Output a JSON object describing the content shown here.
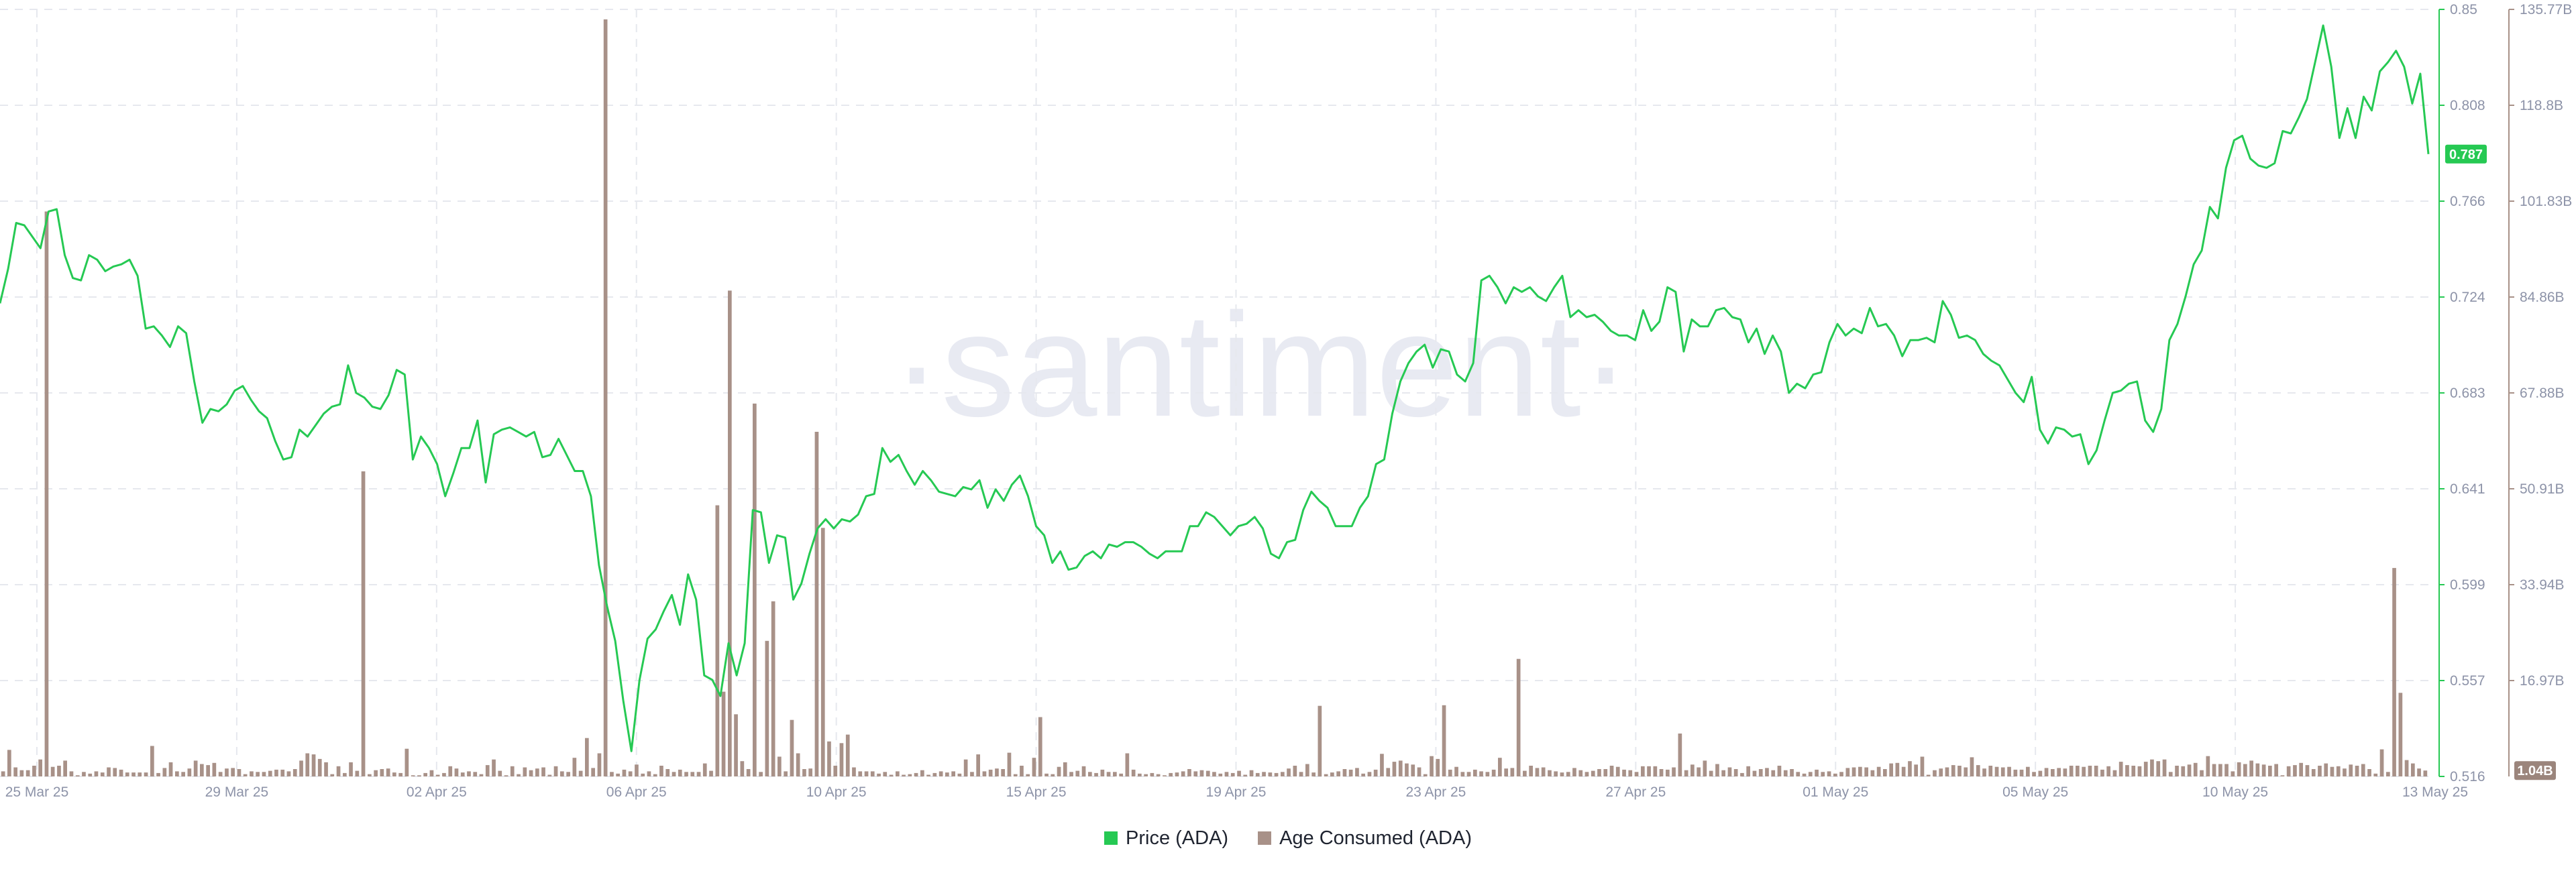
{
  "watermark": "·santiment·",
  "legend": {
    "price_label": "Price (ADA)",
    "age_label": "Age Consumed (ADA)"
  },
  "chart_data": {
    "type": "line",
    "title": "",
    "x_ticks": [
      "25 Mar 25",
      "29 Mar 25",
      "02 Apr 25",
      "06 Apr 25",
      "10 Apr 25",
      "15 Apr 25",
      "19 Apr 25",
      "23 Apr 25",
      "27 Apr 25",
      "01 May 25",
      "05 May 25",
      "10 May 25",
      "13 May 25"
    ],
    "price_axis": {
      "ticks": [
        "0.85",
        "0.808",
        "0.766",
        "0.724",
        "0.683",
        "0.641",
        "0.599",
        "0.557",
        "0.516"
      ],
      "min": 0.516,
      "max": 0.85,
      "color": "#26c953"
    },
    "age_axis": {
      "ticks": [
        "135.77B",
        "118.8B",
        "101.83B",
        "84.86B",
        "67.88B",
        "50.91B",
        "33.94B",
        "16.97B"
      ],
      "min": 0,
      "max": 135.77,
      "color": "#a89188"
    },
    "current_price_label": "0.787",
    "current_age_label": "1.04B",
    "series": [
      {
        "name": "Price (ADA)",
        "color": "#26c953",
        "values": [
          0.722,
          0.737,
          0.757,
          0.756,
          0.751,
          0.746,
          0.762,
          0.763,
          0.743,
          0.733,
          0.732,
          0.743,
          0.741,
          0.736,
          0.738,
          0.739,
          0.741,
          0.734,
          0.711,
          0.712,
          0.708,
          0.703,
          0.712,
          0.709,
          0.688,
          0.67,
          0.676,
          0.675,
          0.678,
          0.684,
          0.686,
          0.68,
          0.675,
          0.672,
          0.662,
          0.654,
          0.655,
          0.667,
          0.664,
          0.669,
          0.674,
          0.677,
          0.678,
          0.695,
          0.683,
          0.681,
          0.677,
          0.676,
          0.682,
          0.693,
          0.691,
          0.654,
          0.664,
          0.659,
          0.652,
          0.638,
          0.648,
          0.659,
          0.659,
          0.671,
          0.644,
          0.665,
          0.667,
          0.668,
          0.666,
          0.664,
          0.666,
          0.655,
          0.656,
          0.663,
          0.656,
          0.649,
          0.649,
          0.638,
          0.608,
          0.59,
          0.575,
          0.549,
          0.527,
          0.558,
          0.576,
          0.58,
          0.588,
          0.595,
          0.582,
          0.604,
          0.593,
          0.56,
          0.558,
          0.551,
          0.574,
          0.56,
          0.574,
          0.632,
          0.631,
          0.609,
          0.621,
          0.62,
          0.593,
          0.6,
          0.613,
          0.624,
          0.628,
          0.624,
          0.628,
          0.627,
          0.63,
          0.638,
          0.639,
          0.659,
          0.653,
          0.656,
          0.649,
          0.643,
          0.649,
          0.645,
          0.64,
          0.639,
          0.638,
          0.642,
          0.641,
          0.645,
          0.633,
          0.641,
          0.636,
          0.643,
          0.647,
          0.638,
          0.625,
          0.621,
          0.609,
          0.614,
          0.606,
          0.607,
          0.612,
          0.614,
          0.611,
          0.617,
          0.616,
          0.618,
          0.618,
          0.616,
          0.613,
          0.611,
          0.614,
          0.614,
          0.614,
          0.625,
          0.625,
          0.631,
          0.629,
          0.625,
          0.621,
          0.625,
          0.626,
          0.629,
          0.624,
          0.613,
          0.611,
          0.618,
          0.619,
          0.632,
          0.64,
          0.636,
          0.633,
          0.625,
          0.625,
          0.625,
          0.633,
          0.638,
          0.652,
          0.654,
          0.674,
          0.688,
          0.696,
          0.701,
          0.704,
          0.694,
          0.702,
          0.701,
          0.691,
          0.688,
          0.696,
          0.732,
          0.734,
          0.729,
          0.722,
          0.729,
          0.727,
          0.729,
          0.725,
          0.723,
          0.729,
          0.734,
          0.716,
          0.719,
          0.716,
          0.717,
          0.714,
          0.71,
          0.708,
          0.708,
          0.706,
          0.719,
          0.71,
          0.714,
          0.729,
          0.727,
          0.701,
          0.715,
          0.712,
          0.712,
          0.719,
          0.72,
          0.716,
          0.715,
          0.705,
          0.711,
          0.7,
          0.708,
          0.701,
          0.683,
          0.687,
          0.685,
          0.691,
          0.692,
          0.705,
          0.713,
          0.708,
          0.711,
          0.709,
          0.72,
          0.712,
          0.713,
          0.708,
          0.699,
          0.706,
          0.706,
          0.707,
          0.705,
          0.723,
          0.717,
          0.707,
          0.708,
          0.706,
          0.7,
          0.697,
          0.695,
          0.689,
          0.683,
          0.679,
          0.69,
          0.667,
          0.661,
          0.668,
          0.667,
          0.664,
          0.665,
          0.652,
          0.658,
          0.671,
          0.683,
          0.684,
          0.687,
          0.688,
          0.671,
          0.666,
          0.676,
          0.706,
          0.713,
          0.725,
          0.739,
          0.745,
          0.764,
          0.759,
          0.781,
          0.793,
          0.795,
          0.785,
          0.782,
          0.781,
          0.783,
          0.797,
          0.796,
          0.803,
          0.811,
          0.827,
          0.843,
          0.825,
          0.794,
          0.807,
          0.794,
          0.812,
          0.806,
          0.823,
          0.827,
          0.832,
          0.825,
          0.809,
          0.822,
          0.787
        ]
      },
      {
        "name": "Age Consumed (ADA)",
        "color": "#a89188",
        "values": [
          0.9,
          4.7,
          1.6,
          1.1,
          1.1,
          1.9,
          3.0,
          100.0,
          1.7,
          1.9,
          2.8,
          0.9,
          0.2,
          0.8,
          0.5,
          0.9,
          0.7,
          1.6,
          1.5,
          1.2,
          0.7,
          0.7,
          0.7,
          0.7,
          5.4,
          0.6,
          1.5,
          2.5,
          0.9,
          0.8,
          1.4,
          2.8,
          2.2,
          2.0,
          2.4,
          0.8,
          1.4,
          1.5,
          1.3,
          0.4,
          0.9,
          0.8,
          0.8,
          1.0,
          1.2,
          1.2,
          0.9,
          1.3,
          2.8,
          4.1,
          3.9,
          3.1,
          2.5,
          0.4,
          1.8,
          0.6,
          2.5,
          1.0,
          54.0,
          0.4,
          1.1,
          1.3,
          1.4,
          0.7,
          0.6,
          4.9,
          0.2,
          0.2,
          0.6,
          1.1,
          0.3,
          0.6,
          1.8,
          1.4,
          0.7,
          0.9,
          0.8,
          0.4,
          2.0,
          3.0,
          1.0,
          0.2,
          1.8,
          0.4,
          1.6,
          1.1,
          1.4,
          1.6,
          0.3,
          1.8,
          0.9,
          0.8,
          3.3,
          1.0,
          6.8,
          1.5,
          4.1,
          134.0,
          0.8,
          0.5,
          1.2,
          0.9,
          2.1,
          0.5,
          0.9,
          0.4,
          1.9,
          1.3,
          0.8,
          1.2,
          0.8,
          0.8,
          0.8,
          2.3,
          1.0,
          48.0,
          15.0,
          86.0,
          11.0,
          2.7,
          1.3,
          66.0,
          0.8,
          24.0,
          31.0,
          3.5,
          0.9,
          10.0,
          4.1,
          1.3,
          1.4,
          61.0,
          44.0,
          6.2,
          1.9,
          5.9,
          7.4,
          1.6,
          0.9,
          0.9,
          0.9,
          0.5,
          0.8,
          0.3,
          0.9,
          0.3,
          0.4,
          0.6,
          1.1,
          0.3,
          0.6,
          0.9,
          0.7,
          0.9,
          0.5,
          3.0,
          0.8,
          3.9,
          0.9,
          1.2,
          1.4,
          1.3,
          4.2,
          0.4,
          1.9,
          0.4,
          3.3,
          10.5,
          0.5,
          0.4,
          1.7,
          2.5,
          0.8,
          1.0,
          1.8,
          0.8,
          0.6,
          1.2,
          0.8,
          0.8,
          0.5,
          4.1,
          1.2,
          0.5,
          0.4,
          0.6,
          0.4,
          0.2,
          0.6,
          0.7,
          0.9,
          1.3,
          0.9,
          1.1,
          1.0,
          0.8,
          0.5,
          0.8,
          0.6,
          1.0,
          0.3,
          1.1,
          0.6,
          0.8,
          0.7,
          0.6,
          0.8,
          1.4,
          1.9,
          0.8,
          2.2,
          0.7,
          12.5,
          0.4,
          0.7,
          0.9,
          1.3,
          1.2,
          1.5,
          0.5,
          0.8,
          1.2,
          4.0,
          1.5,
          2.6,
          2.8,
          2.3,
          2.1,
          1.6,
          0.4,
          3.6,
          3.1,
          12.6,
          1.2,
          1.7,
          0.8,
          0.8,
          1.2,
          0.9,
          0.8,
          1.2,
          3.3,
          1.4,
          1.5,
          20.8,
          1.0,
          1.9,
          1.5,
          1.6,
          1.1,
          0.9,
          0.7,
          0.8,
          1.5,
          1.1,
          0.8,
          1.0,
          1.3,
          1.3,
          1.9,
          1.7,
          1.2,
          1.1,
          0.8,
          1.8,
          1.8,
          1.8,
          1.3,
          1.2,
          1.6,
          7.6,
          1.1,
          2.1,
          1.6,
          2.8,
          1.0,
          2.2,
          1.1,
          1.6,
          1.3,
          0.6,
          1.8,
          1.0,
          1.3,
          1.5,
          1.1,
          1.9,
          1.1,
          1.3,
          0.8,
          0.5,
          0.8,
          1.2,
          0.8,
          0.9,
          0.5,
          0.8,
          1.5,
          1.6,
          1.7,
          1.6,
          1.1,
          1.7,
          1.3,
          2.3,
          2.4,
          1.7,
          2.7,
          2.1,
          3.5,
          0.3,
          1.1,
          1.4,
          1.6,
          2.0,
          1.9,
          1.6,
          3.4,
          2.0,
          1.4,
          1.9,
          1.7,
          1.6,
          1.7,
          1.2,
          1.2,
          1.7,
          0.8,
          1.0,
          1.5,
          1.3,
          1.5,
          1.4,
          1.9,
          1.9,
          1.7,
          1.9,
          1.9,
          1.2,
          1.8,
          1.1,
          2.6,
          2.0,
          1.9,
          1.8,
          2.6,
          3.0,
          2.7,
          3.0,
          0.8,
          1.9,
          1.8,
          2.1,
          2.4,
          1.1,
          3.6,
          2.2,
          2.2,
          2.2,
          0.9,
          2.5,
          2.2,
          2.8,
          2.3,
          2.1,
          1.9,
          2.2,
          0.2,
          1.8,
          2.0,
          2.4,
          2.0,
          1.3,
          1.9,
          2.3,
          1.7,
          1.8,
          1.4,
          2.1,
          1.9,
          2.2,
          1.3,
          0.5,
          4.8,
          0.8,
          36.9,
          14.8,
          2.9,
          2.3,
          1.4,
          1.04
        ]
      }
    ],
    "grid": true,
    "legend_position": "bottom-center"
  }
}
